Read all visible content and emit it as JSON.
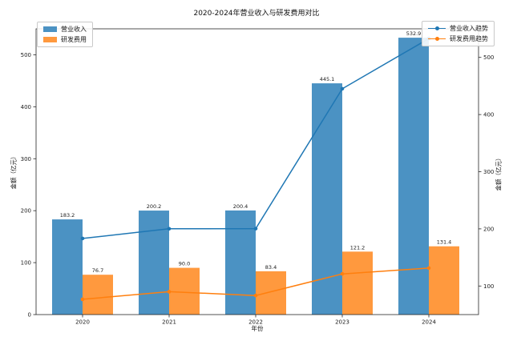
{
  "chart_data": {
    "type": "combo-bar-line",
    "title": "2020-2024年营业收入与研发费用对比",
    "xlabel": "年份",
    "ylabel_left": "金额（亿元）",
    "ylabel_right": "金额（亿元）",
    "categories": [
      "2020",
      "2021",
      "2022",
      "2023",
      "2024"
    ],
    "series": [
      {
        "name": "营业收入",
        "type": "bar",
        "axis": "left",
        "color": "#4B92C3",
        "values": [
          183.2,
          200.2,
          200.4,
          445.1,
          532.9
        ],
        "labels": [
          "183.2",
          "200.2",
          "200.4",
          "445.1",
          "532.9"
        ]
      },
      {
        "name": "研发费用",
        "type": "bar",
        "axis": "left",
        "color": "#FF993E",
        "values": [
          76.7,
          90.0,
          83.4,
          121.2,
          131.4
        ],
        "labels": [
          "76.7",
          "90.0",
          "83.4",
          "121.2",
          "131.4"
        ]
      },
      {
        "name": "营业收入趋势",
        "type": "line",
        "axis": "right",
        "color": "#1F77B4",
        "values": [
          183.2,
          200.2,
          200.4,
          445.1,
          532.9
        ]
      },
      {
        "name": "研发费用趋势",
        "type": "line",
        "axis": "right",
        "color": "#FF7F0E",
        "values": [
          76.7,
          90.0,
          83.4,
          121.2,
          131.4
        ]
      }
    ],
    "axes": {
      "left_ticks": [
        0,
        100,
        200,
        300,
        400,
        500
      ],
      "left_lim": [
        0,
        550
      ],
      "right_ticks": [
        100,
        200,
        300,
        400,
        500
      ],
      "right_lim": [
        50,
        550
      ],
      "x_ticks": [
        "2020",
        "2021",
        "2022",
        "2023",
        "2024"
      ]
    },
    "legend_left_position": "upper-left",
    "legend_right_position": "upper-right",
    "grid": false,
    "background": "#ffffff",
    "spine_color": "#262626"
  }
}
